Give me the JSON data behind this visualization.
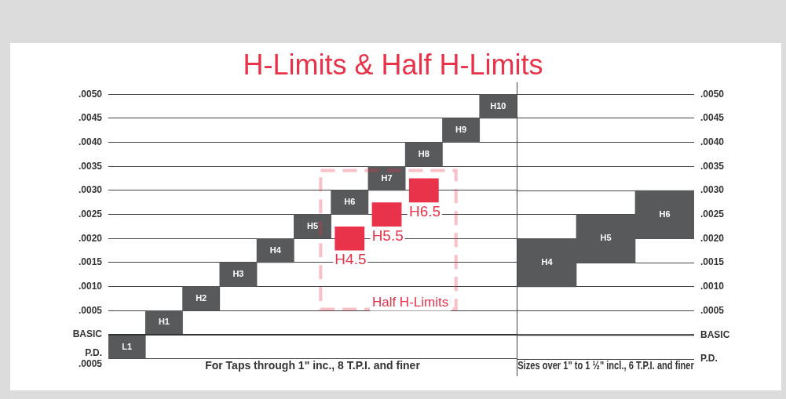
{
  "chart_data": [
    {
      "type": "bar",
      "title": "H-Limits & Half H-Limits",
      "xlabel": "For Taps through 1\" inc., 8 T.P.I. and finer",
      "categories": [
        "L1",
        "H1",
        "H2",
        "H3",
        "H4",
        "H5",
        "H6",
        "H7",
        "H8",
        "H9",
        "H10"
      ],
      "series": [
        {
          "color": "#58595b",
          "values": [
            0.0005,
            0.0005,
            0.0005,
            0.0005,
            0.0005,
            0.0005,
            0.0005,
            0.0005,
            0.0005,
            0.0005,
            0.0005
          ],
          "base": [
            -0.0005,
            0,
            0.0005,
            0.001,
            0.0015,
            0.002,
            0.0025,
            0.003,
            0.0035,
            0.004,
            0.0045
          ]
        },
        {
          "name": "Half H-Limits",
          "color": "#e8334a",
          "x": [
            "H6",
            "H7",
            "H8"
          ],
          "values": [
            0.0005,
            0.0005,
            0.0005
          ],
          "base": [
            0.00175,
            0.00225,
            0.00275
          ]
        }
      ],
      "annotations": [
        {
          "text": "H4.5",
          "x": "H6",
          "y": 0.00175
        },
        {
          "text": "H5.5",
          "x": "H7",
          "y": 0.00225
        },
        {
          "text": "H6.5",
          "x": "H8",
          "y": 0.00275
        }
      ],
      "ylim": [
        -0.0005,
        0.005
      ],
      "yticks": [
        {
          "value": -0.0005,
          "label": "P.D.\n.0005"
        },
        {
          "value": 0,
          "label": "BASIC"
        },
        {
          "value": 0.0005,
          "label": ".0005"
        },
        {
          "value": 0.001,
          "label": ".0010"
        },
        {
          "value": 0.0015,
          "label": ".0015"
        },
        {
          "value": 0.002,
          "label": ".0020"
        },
        {
          "value": 0.0025,
          "label": ".0025"
        },
        {
          "value": 0.003,
          "label": ".0030"
        },
        {
          "value": 0.0035,
          "label": ".0035"
        },
        {
          "value": 0.004,
          "label": ".0040"
        },
        {
          "value": 0.0045,
          "label": ".0045"
        },
        {
          "value": 0.005,
          "label": ".0050"
        }
      ],
      "grid": "y",
      "tick_labels": "y"
    },
    {
      "type": "bar",
      "xlabel": "Sizes over 1\" to 1 ½\" incl., 6 T.P.I. and finer",
      "categories": [
        "H4",
        "H5",
        "H6"
      ],
      "series": [
        {
          "color": "#58595b",
          "values": [
            0.001,
            0.001,
            0.001
          ],
          "base": [
            0.001,
            0.0015,
            0.002
          ]
        }
      ],
      "ylim": [
        -0.0005,
        0.005
      ],
      "yticks": [
        {
          "value": -0.0005,
          "label": "P.D."
        },
        {
          "value": 0,
          "label": "BASIC"
        },
        {
          "value": 0.0005,
          "label": ".0005"
        },
        {
          "value": 0.001,
          "label": ".0010"
        },
        {
          "value": 0.0015,
          "label": ".0015"
        },
        {
          "value": 0.002,
          "label": ".0020"
        },
        {
          "value": 0.0025,
          "label": ".0025"
        },
        {
          "value": 0.003,
          "label": ".0030"
        },
        {
          "value": 0.0035,
          "label": ".0035"
        },
        {
          "value": 0.004,
          "label": ".0040"
        },
        {
          "value": 0.0045,
          "label": ".0045"
        },
        {
          "value": 0.005,
          "label": ".0050"
        }
      ],
      "grid": "y",
      "tick_labels": "y"
    }
  ]
}
